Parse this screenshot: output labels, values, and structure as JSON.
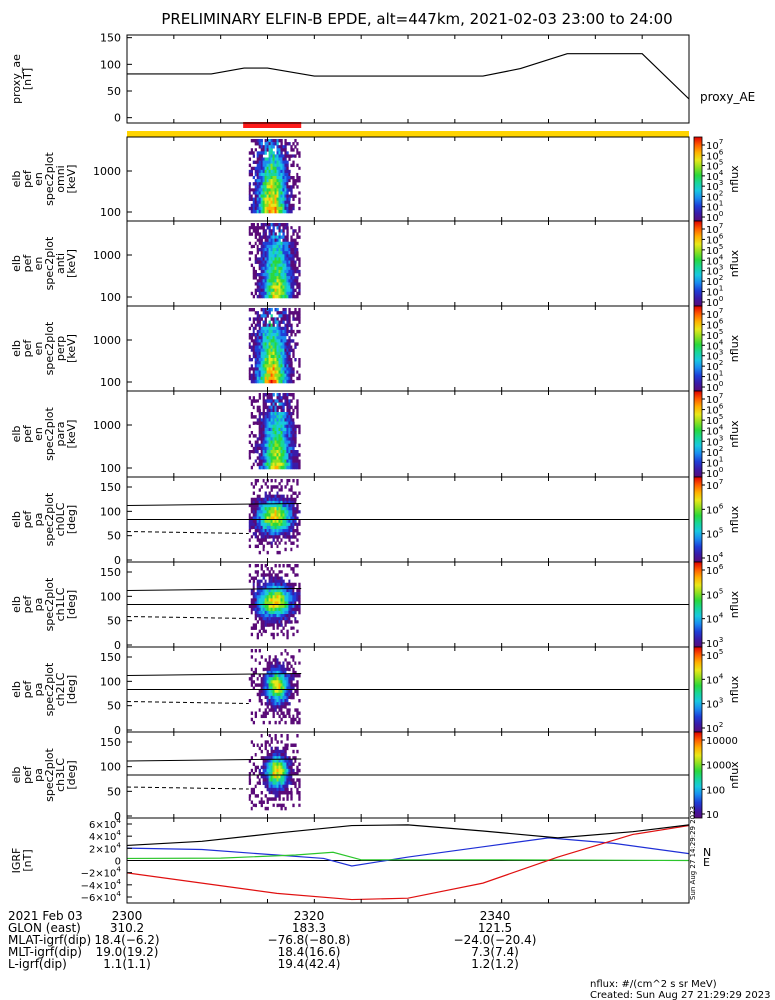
{
  "title": "PRELIMINARY ELFIN-B EPDE, alt=447km, 2021-02-03 23:00 to 24:00",
  "colors": {
    "ae_bar": "#ffd400",
    "science_bar": "#ff1a1a",
    "bx": "#1f2fd6",
    "by": "#2cc52c",
    "bz": "#e01010",
    "bt": "#000000"
  },
  "chart_data": [
    {
      "type": "line",
      "id": "proxy_ae",
      "ylabel": [
        "proxy_ae",
        "[nT]"
      ],
      "legend": "proxy_AE",
      "yticks": [
        "150",
        "100",
        "50",
        "0"
      ],
      "ylim": [
        -10,
        155
      ],
      "x": [
        0,
        3,
        9,
        12.5,
        15,
        20,
        25,
        29,
        33,
        38,
        42,
        47,
        49,
        55,
        60
      ],
      "values": [
        82,
        82,
        82,
        93,
        93,
        78,
        78,
        78,
        78,
        78,
        92,
        120,
        120,
        120,
        35
      ]
    },
    {
      "type": "heatmap",
      "id": "en_omni",
      "ylabel": [
        "elb",
        "pef",
        "en",
        "spec2plot",
        "omni",
        "[keV]"
      ],
      "yticks": [
        "1000",
        "100"
      ],
      "cbar_ticks": [
        "10^7",
        "10^6",
        "10^5",
        "10^4",
        "10^3",
        "10^2",
        "10^1",
        "10^0"
      ],
      "cbar_label": "nflux"
    },
    {
      "type": "heatmap",
      "id": "en_anti",
      "ylabel": [
        "elb",
        "pef",
        "en",
        "spec2plot",
        "anti",
        "[keV]"
      ],
      "yticks": [
        "1000",
        "100"
      ],
      "cbar_ticks": [
        "10^7",
        "10^6",
        "10^5",
        "10^4",
        "10^3",
        "10^2",
        "10^1",
        "10^0"
      ],
      "cbar_label": "nflux"
    },
    {
      "type": "heatmap",
      "id": "en_perp",
      "ylabel": [
        "elb",
        "pef",
        "en",
        "spec2plot",
        "perp",
        "[keV]"
      ],
      "yticks": [
        "1000",
        "100"
      ],
      "cbar_ticks": [
        "10^7",
        "10^6",
        "10^5",
        "10^4",
        "10^3",
        "10^2",
        "10^1",
        "10^0"
      ],
      "cbar_label": "nflux"
    },
    {
      "type": "heatmap",
      "id": "en_para",
      "ylabel": [
        "elb",
        "pef",
        "en",
        "spec2plot",
        "para",
        "[keV]"
      ],
      "yticks": [
        "1000",
        "100"
      ],
      "cbar_ticks": [
        "10^7",
        "10^6",
        "10^5",
        "10^4",
        "10^3",
        "10^2",
        "10^1",
        "10^0"
      ],
      "cbar_label": "nflux"
    },
    {
      "type": "heatmap",
      "id": "pa_ch0",
      "ylabel": [
        "elb",
        "pef",
        "pa",
        "spec2plot",
        "ch0LC",
        "[deg]"
      ],
      "yticks": [
        "150",
        "100",
        "50",
        "0"
      ],
      "cbar_ticks": [
        "10^7",
        "10^6",
        "10^5",
        "10^4"
      ],
      "cbar_label": "nflux"
    },
    {
      "type": "heatmap",
      "id": "pa_ch1",
      "ylabel": [
        "elb",
        "pef",
        "pa",
        "spec2plot",
        "ch1LC",
        "[deg]"
      ],
      "yticks": [
        "150",
        "100",
        "50",
        "0"
      ],
      "cbar_ticks": [
        "10^6",
        "10^5",
        "10^4",
        "10^3"
      ],
      "cbar_label": "nflux"
    },
    {
      "type": "heatmap",
      "id": "pa_ch2",
      "ylabel": [
        "elb",
        "pef",
        "pa",
        "spec2plot",
        "ch2LC",
        "[deg]"
      ],
      "yticks": [
        "150",
        "100",
        "50",
        "0"
      ],
      "cbar_ticks": [
        "10^5",
        "10^4",
        "10^3",
        "10^2"
      ],
      "cbar_label": "nflux"
    },
    {
      "type": "heatmap",
      "id": "pa_ch3",
      "ylabel": [
        "elb",
        "pef",
        "pa",
        "spec2plot",
        "ch3LC",
        "[deg]"
      ],
      "yticks": [
        "150",
        "100",
        "50",
        "0"
      ],
      "cbar_ticks": [
        "10000",
        "1000",
        "100",
        "10"
      ],
      "cbar_label": "nflux"
    },
    {
      "type": "line",
      "id": "igrf",
      "ylabel": [
        "IGRF",
        "[nT]"
      ],
      "yticks": [
        "6×10^4",
        "4×10^4",
        "2×10^4",
        "0",
        "−2×10^4",
        "−4×10^4",
        "−6×10^4"
      ],
      "ylim": [
        -62000,
        62000
      ],
      "legend": [
        "N",
        "E"
      ],
      "series": [
        {
          "key": "bx",
          "x": [
            0,
            8,
            16,
            21,
            24,
            30,
            38,
            45,
            52,
            60
          ],
          "values": [
            18000,
            16000,
            8000,
            3000,
            -8000,
            5000,
            20000,
            33000,
            25000,
            10000
          ]
        },
        {
          "key": "by",
          "x": [
            0,
            10,
            18,
            22,
            25,
            40,
            60
          ],
          "values": [
            3000,
            3500,
            8000,
            12000,
            1000,
            1000,
            0
          ]
        },
        {
          "key": "bz",
          "x": [
            0,
            8,
            16,
            24,
            30,
            38,
            46,
            54,
            60
          ],
          "values": [
            -18000,
            -33000,
            -48000,
            -57000,
            -55000,
            -33000,
            5000,
            38000,
            51000
          ]
        },
        {
          "key": "bt",
          "x": [
            0,
            8,
            16,
            24,
            30,
            38,
            46,
            54,
            60
          ],
          "values": [
            22000,
            28000,
            40000,
            51000,
            52000,
            43000,
            33000,
            42000,
            52000
          ]
        }
      ]
    }
  ],
  "orbit_table": {
    "rows": [
      {
        "label": "2021 Feb 03",
        "values": [
          "2300",
          "2320",
          "2340"
        ]
      },
      {
        "label": "GLON (east)",
        "values": [
          "310.2",
          "183.3",
          "121.5"
        ]
      },
      {
        "label": "MLAT-igrf(dip)",
        "values": [
          "18.4(−6.2)",
          "−76.8(−80.8)",
          "−24.0(−20.4)"
        ]
      },
      {
        "label": "MLT-igrf(dip)",
        "values": [
          "19.0(19.2)",
          "18.4(16.6)",
          "7.3(7.4)"
        ]
      },
      {
        "label": "L-igrf(dip)",
        "values": [
          "1.1(1.1)",
          "19.4(42.4)",
          "1.2(1.2)"
        ]
      }
    ]
  },
  "footer": {
    "units": "nflux: #/(cm^2 s sr MeV)",
    "created": "Created: Sun Aug 27 21:29:29 2023",
    "side_stamp": "Sun Aug 27 14:29:29 2023"
  }
}
